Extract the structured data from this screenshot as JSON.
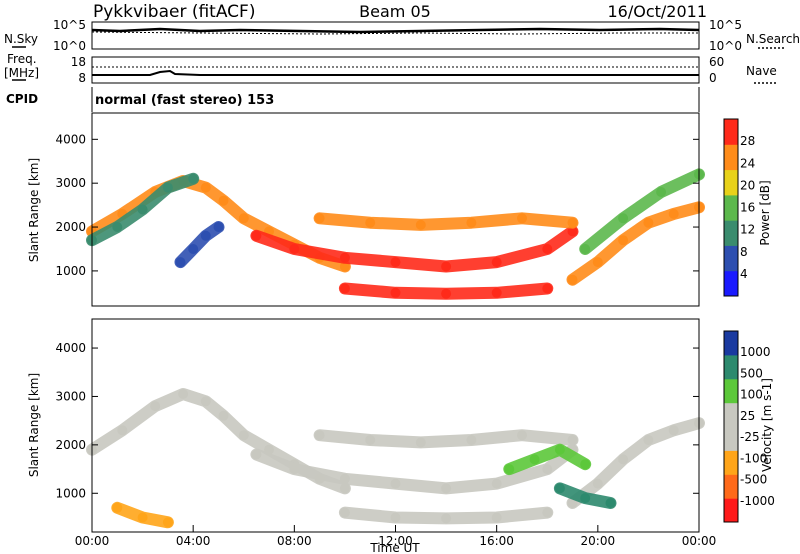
{
  "header": {
    "station": "Pykkvibaer (fitACF)",
    "beam": "Beam 05",
    "date": "16/Oct/2011"
  },
  "strips": {
    "nsky": {
      "label": "N.Sky",
      "ytick_top": "10^5",
      "ytick_bottom": "10^0",
      "right_label": "N.Search",
      "right_top": "10^5",
      "right_bottom": "10^0"
    },
    "freq": {
      "label_line1": "Freq.",
      "label_line2": "[MHz]",
      "ytick_top": "18",
      "ytick_bottom": "8",
      "right_label": "Nave",
      "right_top": "60",
      "right_bottom": "0"
    },
    "cpid": {
      "label": "CPID",
      "text": "normal (fast stereo) 153"
    }
  },
  "chart_data": [
    {
      "type": "heatmap",
      "name": "power",
      "ylabel": "Slant Range [km]",
      "ylim": [
        200,
        4600
      ],
      "yticks": [
        "1000",
        "2000",
        "3000",
        "4000"
      ],
      "xlim": [
        0,
        24
      ],
      "colorbar": {
        "label": "Power [dB]",
        "ticks": [
          "4",
          "8",
          "12",
          "16",
          "20",
          "24",
          "28"
        ],
        "colors": [
          "#1a1aff",
          "#2d4fb0",
          "#3a8c6e",
          "#5cb84c",
          "#e8d21a",
          "#ff8c1a",
          "#ff2a1a"
        ]
      },
      "bands": [
        {
          "x": [
            0,
            1.2,
            2.5,
            3.6,
            4.5,
            5.2,
            6.0,
            7.0,
            8.0,
            9.0,
            10.0
          ],
          "y": [
            1900,
            2300,
            2800,
            3050,
            2900,
            2600,
            2200,
            1900,
            1600,
            1300,
            1100
          ],
          "color": "#ff8c1a"
        },
        {
          "x": [
            0,
            1.0,
            2.0,
            3.0,
            4.0
          ],
          "y": [
            1700,
            2000,
            2400,
            2900,
            3100
          ],
          "color": "#3a8c6e"
        },
        {
          "x": [
            6.5,
            8.0,
            10.0,
            12.0,
            14.0,
            16.0,
            18.0,
            19.0
          ],
          "y": [
            1800,
            1500,
            1300,
            1200,
            1100,
            1200,
            1500,
            1900
          ],
          "color": "#ff2a1a"
        },
        {
          "x": [
            9.0,
            11.0,
            13.0,
            15.0,
            17.0,
            19.0
          ],
          "y": [
            2200,
            2100,
            2050,
            2100,
            2200,
            2100
          ],
          "color": "#ff8c1a"
        },
        {
          "x": [
            10.0,
            12.0,
            14.0,
            16.0,
            18.0
          ],
          "y": [
            600,
            500,
            480,
            500,
            600
          ],
          "color": "#ff2a1a"
        },
        {
          "x": [
            19.0,
            20.0,
            21.0,
            22.0,
            23.0,
            24.0
          ],
          "y": [
            800,
            1200,
            1700,
            2100,
            2300,
            2450
          ],
          "color": "#ff8c1a"
        },
        {
          "x": [
            19.5,
            21.0,
            22.5,
            24.0
          ],
          "y": [
            1500,
            2200,
            2800,
            3200
          ],
          "color": "#5cb84c"
        },
        {
          "x": [
            3.5,
            4.0,
            4.5,
            5.0
          ],
          "y": [
            1200,
            1500,
            1800,
            2000
          ],
          "color": "#2d4fb0"
        }
      ]
    },
    {
      "type": "heatmap",
      "name": "velocity",
      "ylabel": "Slant Range [km]",
      "ylim": [
        200,
        4600
      ],
      "yticks": [
        "1000",
        "2000",
        "3000",
        "4000"
      ],
      "xlim": [
        0,
        24
      ],
      "xticks": [
        "00:00",
        "04:00",
        "08:00",
        "12:00",
        "16:00",
        "20:00",
        "00:00"
      ],
      "xlabel": "Time UT",
      "colorbar": {
        "label": "Velocity [m s-1]",
        "ticks": [
          "-1000",
          "-500",
          "-100",
          "-25",
          "25",
          "100",
          "500",
          "1000"
        ],
        "colors": [
          "#ff1a1a",
          "#ff6a1a",
          "#ffa51a",
          "#c8c8c0",
          "#c8c8c0",
          "#5cc83a",
          "#2d8a6e",
          "#1a3aa0"
        ]
      },
      "bands": [
        {
          "x": [
            0,
            1.2,
            2.5,
            3.6,
            4.5,
            5.2,
            6.0,
            7.0,
            8.0,
            9.0,
            10.0
          ],
          "y": [
            1900,
            2300,
            2800,
            3050,
            2900,
            2600,
            2200,
            1900,
            1600,
            1300,
            1100
          ],
          "color": "#c8c8c0"
        },
        {
          "x": [
            6.5,
            8.0,
            10.0,
            12.0,
            14.0,
            16.0,
            18.0,
            19.0
          ],
          "y": [
            1800,
            1500,
            1300,
            1200,
            1100,
            1200,
            1500,
            1900
          ],
          "color": "#c8c8c0"
        },
        {
          "x": [
            9.0,
            11.0,
            13.0,
            15.0,
            17.0,
            19.0
          ],
          "y": [
            2200,
            2100,
            2050,
            2100,
            2200,
            2100
          ],
          "color": "#c8c8c0"
        },
        {
          "x": [
            10.0,
            12.0,
            14.0,
            16.0,
            18.0
          ],
          "y": [
            600,
            500,
            480,
            500,
            600
          ],
          "color": "#c8c8c0"
        },
        {
          "x": [
            19.0,
            20.0,
            21.0,
            22.0,
            23.0,
            24.0
          ],
          "y": [
            800,
            1200,
            1700,
            2100,
            2300,
            2450
          ],
          "color": "#c8c8c0"
        },
        {
          "x": [
            18.5,
            19.5,
            20.5
          ],
          "y": [
            1100,
            900,
            800
          ],
          "color": "#2d8a6e"
        },
        {
          "x": [
            16.5,
            17.5,
            18.5,
            19.5
          ],
          "y": [
            1500,
            1700,
            1900,
            1600
          ],
          "color": "#5cc83a"
        },
        {
          "x": [
            1.0,
            2.0,
            3.0
          ],
          "y": [
            700,
            500,
            400
          ],
          "color": "#ffa51a"
        }
      ]
    }
  ]
}
